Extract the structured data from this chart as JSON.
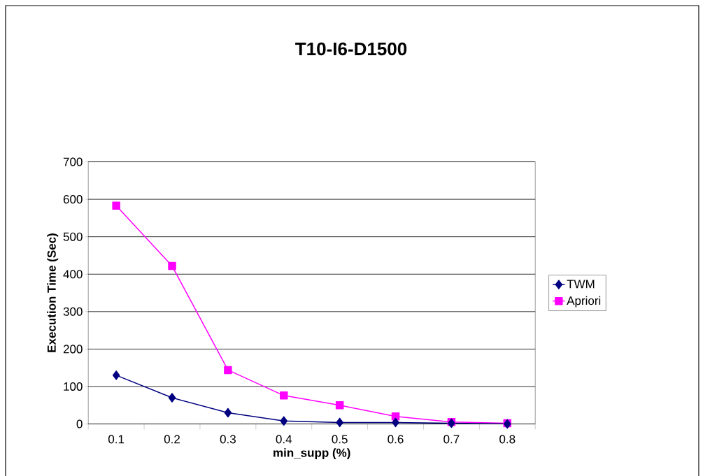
{
  "chart_data": {
    "type": "line",
    "title": "T10-I6-D1500",
    "xlabel": "min_supp (%)",
    "ylabel": "Execution Time (Sec)",
    "categories": [
      "0.1",
      "0.2",
      "0.3",
      "0.4",
      "0.5",
      "0.6",
      "0.7",
      "0.8"
    ],
    "series": [
      {
        "name": "TWM",
        "color": "#000080",
        "marker": "diamond",
        "values": [
          130,
          70,
          30,
          8,
          4,
          4,
          2,
          0
        ]
      },
      {
        "name": "Apriori",
        "color": "#ff00ff",
        "marker": "square",
        "values": [
          583,
          422,
          144,
          76,
          50,
          20,
          5,
          2
        ]
      }
    ],
    "ylim": [
      0,
      700
    ],
    "yticks": [
      0,
      100,
      200,
      300,
      400,
      500,
      600,
      700
    ],
    "grid": "y",
    "legend": "right",
    "line_style": "solid"
  }
}
